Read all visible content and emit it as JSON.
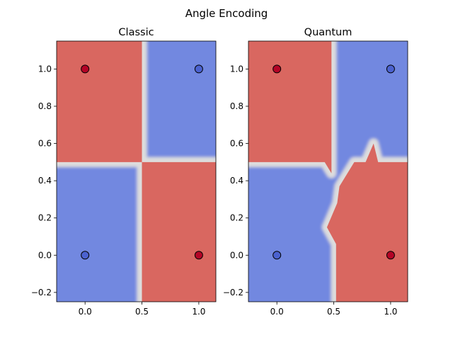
{
  "figure": {
    "suptitle": "Angle Encoding"
  },
  "colors": {
    "blue": "#7288e0",
    "red": "#d96760",
    "boundary": "#dddddd",
    "point_blue": "#4b62cf",
    "point_red": "#b40426"
  },
  "chart_data": [
    {
      "type": "contour",
      "title": "Classic",
      "xlim": [
        -0.25,
        1.15
      ],
      "ylim": [
        -0.25,
        1.15
      ],
      "xticks": [
        0.0,
        0.5,
        1.0
      ],
      "xtick_labels": [
        "0.0",
        "0.5",
        "1.0"
      ],
      "yticks": [
        -0.2,
        0.0,
        0.2,
        0.4,
        0.6,
        0.8,
        1.0
      ],
      "ytick_labels": [
        "−0.2",
        "0.0",
        "0.2",
        "0.4",
        "0.6",
        "0.8",
        "1.0"
      ],
      "regions": [
        {
          "class": "red",
          "polygon": [
            [
              -0.25,
              0.5
            ],
            [
              0.5,
              0.5
            ],
            [
              0.5,
              1.15
            ],
            [
              -0.25,
              1.15
            ]
          ]
        },
        {
          "class": "red",
          "polygon": [
            [
              0.5,
              -0.25
            ],
            [
              1.15,
              -0.25
            ],
            [
              1.15,
              0.5
            ],
            [
              0.5,
              0.5
            ]
          ]
        }
      ],
      "points": [
        {
          "x": 0,
          "y": 0,
          "class": "blue"
        },
        {
          "x": 0,
          "y": 1,
          "class": "red"
        },
        {
          "x": 1,
          "y": 0,
          "class": "red"
        },
        {
          "x": 1,
          "y": 1,
          "class": "blue"
        }
      ]
    },
    {
      "type": "contour",
      "title": "Quantum",
      "xlim": [
        -0.25,
        1.15
      ],
      "ylim": [
        -0.25,
        1.15
      ],
      "xticks": [
        0.0,
        0.5,
        1.0
      ],
      "xtick_labels": [
        "0.0",
        "0.5",
        "1.0"
      ],
      "yticks": [
        -0.2,
        0.0,
        0.2,
        0.4,
        0.6,
        0.8,
        1.0
      ],
      "ytick_labels": [
        "−0.2",
        "0.0",
        "0.2",
        "0.4",
        "0.6",
        "0.8",
        "1.0"
      ],
      "regions": [
        {
          "class": "red",
          "polygon": [
            [
              -0.25,
              0.5
            ],
            [
              0.42,
              0.5
            ],
            [
              0.48,
              0.44
            ],
            [
              0.48,
              1.15
            ],
            [
              -0.25,
              1.15
            ]
          ]
        },
        {
          "class": "red",
          "polygon": [
            [
              0.52,
              -0.25
            ],
            [
              1.15,
              -0.25
            ],
            [
              1.15,
              0.5
            ],
            [
              0.89,
              0.5
            ],
            [
              0.85,
              0.6
            ],
            [
              0.78,
              0.5
            ],
            [
              0.68,
              0.5
            ],
            [
              0.55,
              0.37
            ],
            [
              0.53,
              0.28
            ],
            [
              0.44,
              0.15
            ],
            [
              0.52,
              0.06
            ]
          ]
        }
      ],
      "points": [
        {
          "x": 0,
          "y": 0,
          "class": "blue"
        },
        {
          "x": 0,
          "y": 1,
          "class": "red"
        },
        {
          "x": 1,
          "y": 0,
          "class": "red"
        },
        {
          "x": 1,
          "y": 1,
          "class": "blue"
        }
      ]
    }
  ]
}
